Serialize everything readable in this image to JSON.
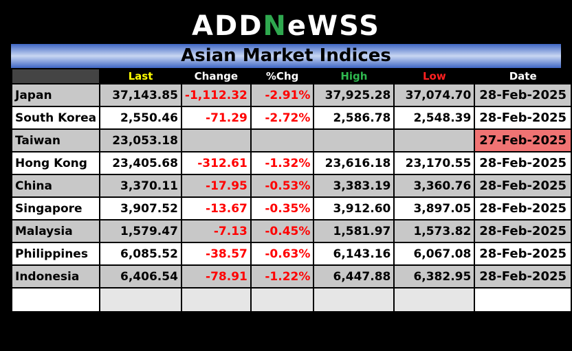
{
  "logo": {
    "text_pre": "ADD",
    "text_mark": "N",
    "text_post": "eWSS"
  },
  "title": "Asian Market Indices",
  "headers": [
    "",
    "Last",
    "Change",
    "%Chg",
    "High",
    "Low",
    "Date"
  ],
  "header_colors": [
    "#ffffff",
    "#ffff00",
    "#ffffff",
    "#ffffff",
    "#2fb84f",
    "#ff2020",
    "#ffffff"
  ],
  "rows": [
    {
      "name": "Japan",
      "last": "37,143.85",
      "change": "-1,112.32",
      "pct": "-2.91%",
      "high": "37,925.28",
      "low": "37,074.70",
      "date": "28-Feb-2025"
    },
    {
      "name": "South Korea",
      "last": "2,550.46",
      "change": "-71.29",
      "pct": "-2.72%",
      "high": "2,586.78",
      "low": "2,548.39",
      "date": "28-Feb-2025"
    },
    {
      "name": "Taiwan",
      "last": "23,053.18",
      "change": "",
      "pct": "",
      "high": "",
      "low": "",
      "date": "27-Feb-2025"
    },
    {
      "name": "Hong Kong",
      "last": "23,405.68",
      "change": "-312.61",
      "pct": "-1.32%",
      "high": "23,616.18",
      "low": "23,170.55",
      "date": "28-Feb-2025"
    },
    {
      "name": "China",
      "last": "3,370.11",
      "change": "-17.95",
      "pct": "-0.53%",
      "high": "3,383.19",
      "low": "3,360.76",
      "date": "28-Feb-2025"
    },
    {
      "name": "Singapore",
      "last": "3,907.52",
      "change": "-13.67",
      "pct": "-0.35%",
      "high": "3,912.60",
      "low": "3,897.05",
      "date": "28-Feb-2025"
    },
    {
      "name": "Malaysia",
      "last": "1,579.47",
      "change": "-7.13",
      "pct": "-0.45%",
      "high": "1,581.97",
      "low": "1,573.82",
      "date": "28-Feb-2025"
    },
    {
      "name": "Philippines",
      "last": "6,085.52",
      "change": "-38.57",
      "pct": "-0.63%",
      "high": "6,143.16",
      "low": "6,067.08",
      "date": "28-Feb-2025"
    },
    {
      "name": "Indonesia",
      "last": "6,406.54",
      "change": "-78.91",
      "pct": "-1.22%",
      "high": "6,447.88",
      "low": "6,382.95",
      "date": "28-Feb-2025"
    }
  ],
  "highlight_color": "#f07373",
  "negative_color": "#ff0000"
}
